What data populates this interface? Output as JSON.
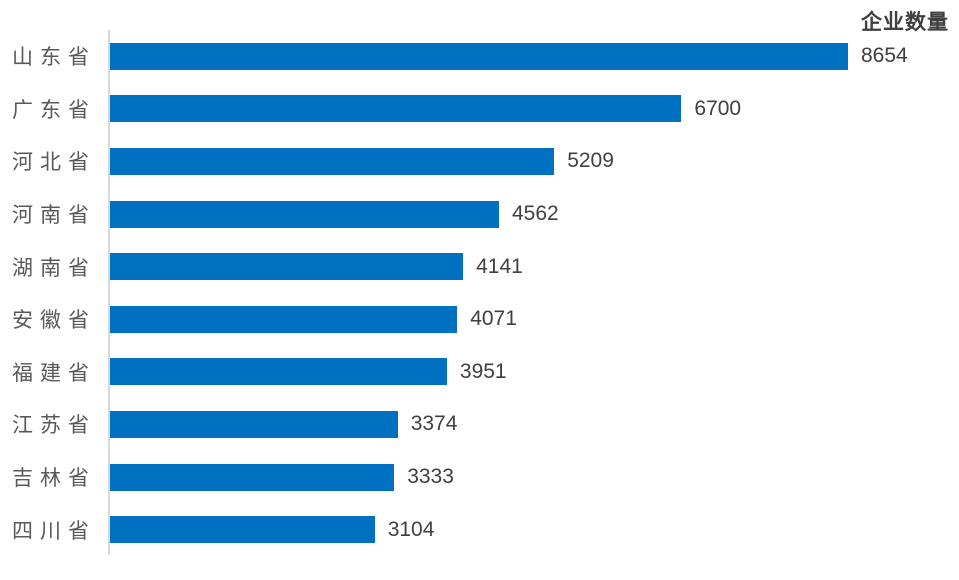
{
  "title": "企业数量",
  "colors": {
    "bar": "#0070c0",
    "axis_line": "#d9d9d9",
    "title_text": "#404040",
    "value_label": "#404040",
    "category_label": "#595959",
    "background": "#ffffff"
  },
  "chart_data": {
    "type": "bar",
    "orientation": "horizontal",
    "title": "企业数量",
    "xlabel": "",
    "ylabel": "",
    "categories": [
      "山东省",
      "广东省",
      "河北省",
      "河南省",
      "湖南省",
      "安徽省",
      "福建省",
      "江苏省",
      "吉林省",
      "四川省"
    ],
    "values": [
      8654,
      6700,
      5209,
      4562,
      4141,
      4071,
      3951,
      3374,
      3333,
      3104
    ],
    "xlim": [
      0,
      8654
    ],
    "grid": false,
    "legend": false,
    "value_labels_position": "end-of-bar",
    "sort_order": "descending"
  }
}
